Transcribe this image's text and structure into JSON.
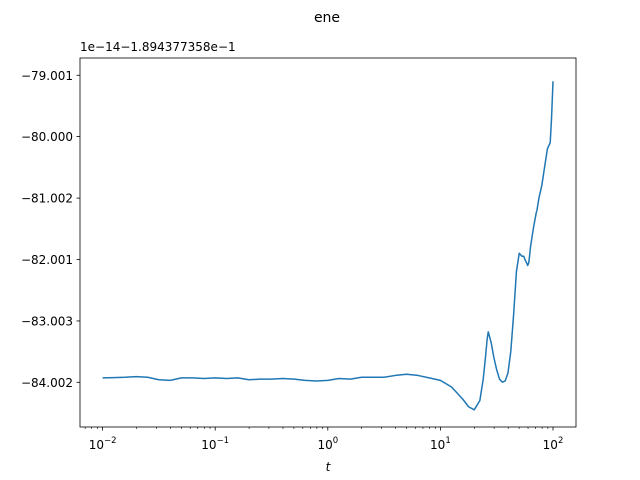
{
  "chart_data": {
    "type": "line",
    "title": "ene",
    "xlabel": "t",
    "ylabel": "",
    "x_scale": "log",
    "xlim": [
      0.0063,
      160
    ],
    "ylim": [
      -84.73,
      -78.72
    ],
    "y_offset_label": "1e−14−1.894377358e−1",
    "x_ticks": [
      {
        "value": 0.01,
        "base": "10",
        "exp": "−2"
      },
      {
        "value": 0.1,
        "base": "10",
        "exp": "−1"
      },
      {
        "value": 1,
        "base": "10",
        "exp": "0"
      },
      {
        "value": 10,
        "base": "10",
        "exp": "1"
      },
      {
        "value": 100,
        "base": "10",
        "exp": "2"
      }
    ],
    "y_ticks": [
      {
        "value": -79.001,
        "label": "−79.001"
      },
      {
        "value": -80.0,
        "label": "−80.000"
      },
      {
        "value": -81.002,
        "label": "−81.002"
      },
      {
        "value": -82.001,
        "label": "−82.001"
      },
      {
        "value": -83.003,
        "label": "−83.003"
      },
      {
        "value": -84.002,
        "label": "−84.002"
      }
    ],
    "line_color": "#1f77b4",
    "series": [
      {
        "x": [
          0.01,
          0.0126,
          0.0158,
          0.02,
          0.0251,
          0.0316,
          0.0398,
          0.0501,
          0.0631,
          0.0794,
          0.1,
          0.1259,
          0.1585,
          0.1995,
          0.2512,
          0.3162,
          0.3981,
          0.5012,
          0.631,
          0.7943,
          1.0,
          1.259,
          1.585,
          1.995,
          2.512,
          3.162,
          3.981,
          5.012,
          6.31,
          7.943,
          10.0,
          12.59,
          14.13,
          15.85,
          17.78,
          19.95,
          22.39,
          24.0,
          25.12,
          26.0,
          26.61,
          28.18,
          29.85,
          31.62,
          33.5,
          35.48,
          37.58,
          39.81,
          42.17,
          44.67,
          47.32,
          50.12,
          53.09,
          55.0,
          56.23,
          58.0,
          59.57,
          61.0,
          63.1,
          66.83,
          70.79,
          72.0,
          75.0,
          79.43,
          84.14,
          89.13,
          94.41,
          97.0,
          100.0
        ],
        "y": [
          -83.93,
          -83.925,
          -83.92,
          -83.91,
          -83.92,
          -83.96,
          -83.97,
          -83.93,
          -83.93,
          -83.94,
          -83.93,
          -83.94,
          -83.93,
          -83.96,
          -83.95,
          -83.95,
          -83.94,
          -83.95,
          -83.97,
          -83.98,
          -83.97,
          -83.94,
          -83.95,
          -83.92,
          -83.92,
          -83.92,
          -83.89,
          -83.87,
          -83.89,
          -83.93,
          -83.97,
          -84.08,
          -84.18,
          -84.28,
          -84.4,
          -84.45,
          -84.3,
          -83.95,
          -83.6,
          -83.3,
          -83.18,
          -83.35,
          -83.6,
          -83.8,
          -83.95,
          -84.0,
          -83.98,
          -83.85,
          -83.5,
          -82.9,
          -82.2,
          -81.9,
          -81.95,
          -81.95,
          -82.0,
          -82.05,
          -82.1,
          -82.05,
          -81.8,
          -81.5,
          -81.25,
          -81.2,
          -81.0,
          -80.8,
          -80.5,
          -80.2,
          -80.1,
          -79.7,
          -79.1
        ]
      }
    ]
  }
}
